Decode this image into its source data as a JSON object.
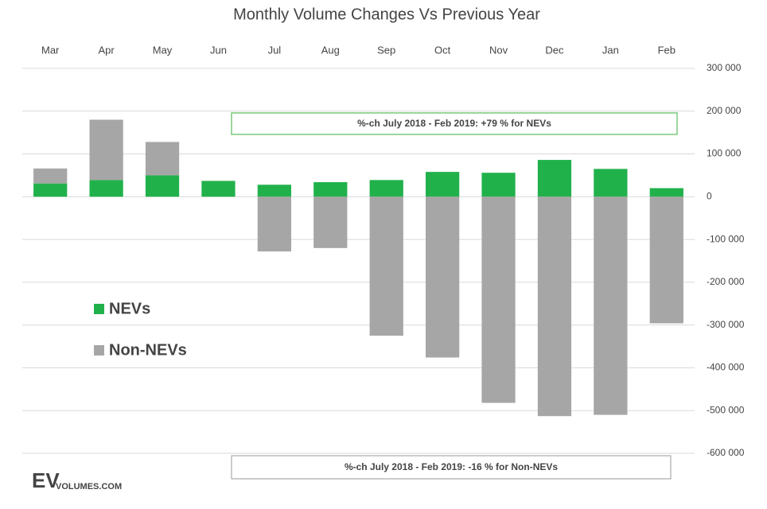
{
  "chart_data": {
    "type": "stacked_bar",
    "title": "Monthly Volume Changes Vs Previous Year",
    "categories": [
      "Mar",
      "Apr",
      "May",
      "Jun",
      "Jul",
      "Aug",
      "Sep",
      "Oct",
      "Nov",
      "Dec",
      "Jan",
      "Feb"
    ],
    "series": [
      {
        "name": "NEVs",
        "color": "#21b14b",
        "values": [
          31000,
          39000,
          50000,
          37000,
          28000,
          34000,
          39000,
          58000,
          56000,
          86000,
          65000,
          20000
        ]
      },
      {
        "name": "Non-NEVs",
        "color": "#a6a6a6",
        "values": [
          35000,
          141000,
          78000,
          0,
          -128000,
          -120000,
          -325000,
          -376000,
          -482000,
          -513000,
          -510000,
          -296000
        ]
      }
    ],
    "ylim": [
      -600000,
      300000
    ],
    "yticks": [
      {
        "value": 300000,
        "label": "300 000"
      },
      {
        "value": 200000,
        "label": "200 000"
      },
      {
        "value": 100000,
        "label": "100 000"
      },
      0,
      {
        "value": -100000,
        "label": "-100 000"
      },
      {
        "value": -200000,
        "label": "-200 000"
      },
      {
        "value": -300000,
        "label": "-300 000"
      },
      {
        "value": -400000,
        "label": "-400 000"
      },
      {
        "value": -500000,
        "label": "-500 000"
      },
      {
        "value": -600000,
        "label": "-600 000"
      }
    ],
    "grid": true,
    "legend": "left",
    "annotations": [
      "%-ch July 2018 - Feb 2019: +79 % for NEVs",
      "%-ch July 2018 - Feb 2019: -16 % for Non-NEVs"
    ],
    "logo": {
      "main": "EV",
      "sub": "VOLUMES.COM"
    }
  }
}
